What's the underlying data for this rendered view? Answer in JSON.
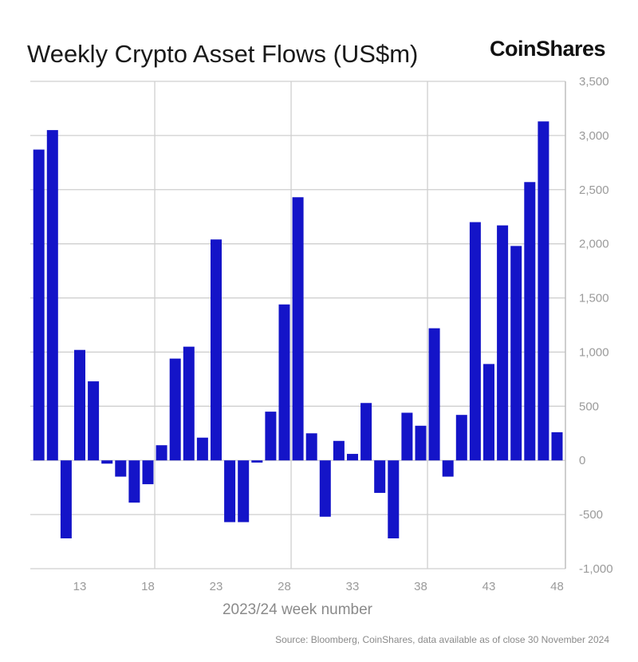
{
  "chart_data": {
    "type": "bar",
    "title": "Weekly Crypto Asset Flows (US$m)",
    "brand": "CoinShares",
    "xlabel": "2023/24 week number",
    "ylabel": "",
    "source": "Source: Bloomberg, CoinShares, data available as of close 30 November 2024",
    "x": [
      10,
      11,
      12,
      13,
      14,
      15,
      16,
      17,
      18,
      19,
      20,
      21,
      22,
      23,
      24,
      25,
      26,
      27,
      28,
      29,
      30,
      31,
      32,
      33,
      34,
      35,
      36,
      37,
      38,
      39,
      40,
      41,
      42,
      43,
      44,
      45,
      46,
      47,
      48
    ],
    "values": [
      2870,
      3050,
      -720,
      1020,
      730,
      -30,
      -150,
      -390,
      -220,
      140,
      940,
      1050,
      210,
      2040,
      -570,
      -570,
      -20,
      450,
      1440,
      2430,
      250,
      -520,
      180,
      60,
      530,
      -300,
      -720,
      440,
      320,
      1220,
      -150,
      420,
      2200,
      890,
      2170,
      1980,
      2570,
      3130,
      260
    ],
    "xticks": [
      "13",
      "18",
      "23",
      "28",
      "33",
      "38",
      "43",
      "48"
    ],
    "yticks": [
      "3,500",
      "3,000",
      "2,500",
      "2,000",
      "1,500",
      "1,000",
      "500",
      "0",
      "-500",
      "-1,000"
    ],
    "ylim": [
      -1000,
      3500
    ],
    "grid": true,
    "bar_color": "#1414c8"
  }
}
